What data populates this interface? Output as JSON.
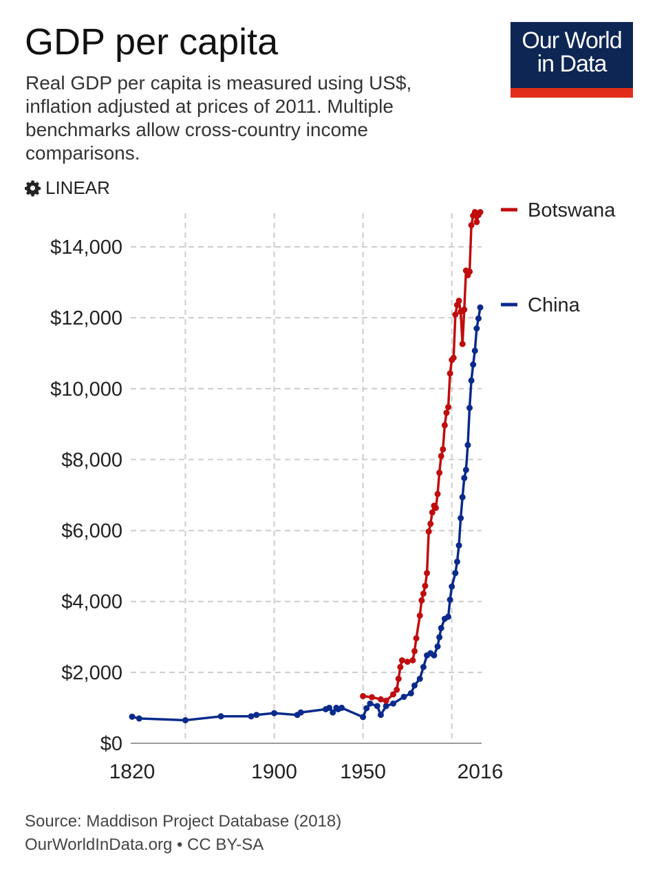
{
  "header": {
    "title": "GDP per capita",
    "subtitle": "Real GDP per capita is measured using US$, inflation adjusted at prices of 2011. Multiple benchmarks allow cross-country income comparisons.",
    "scale_toggle": "LINEAR",
    "scale_icon": "gear-icon"
  },
  "logo": {
    "line1": "Our World",
    "line2": "in Data",
    "bg": "#0d2654",
    "accent": "#e22d18"
  },
  "footer": {
    "source": "Source: Maddison Project Database (2018)",
    "license": "OurWorldInData.org • CC BY-SA"
  },
  "chart_data": {
    "type": "line",
    "title": "GDP per capita",
    "xlim": [
      1820,
      2016
    ],
    "ylim": [
      0,
      14000
    ],
    "grid": true,
    "legend": "right (line-end labels)",
    "x_ticks": [
      "1820",
      "1900",
      "1950",
      "2016"
    ],
    "x_grid": [
      1850,
      1900,
      1950,
      2000
    ],
    "y_ticks": [
      {
        "v": 0,
        "label": "$0"
      },
      {
        "v": 2000,
        "label": "$2,000"
      },
      {
        "v": 4000,
        "label": "$4,000"
      },
      {
        "v": 6000,
        "label": "$6,000"
      },
      {
        "v": 8000,
        "label": "$8,000"
      },
      {
        "v": 10000,
        "label": "$10,000"
      },
      {
        "v": 12000,
        "label": "$12,000"
      },
      {
        "v": 14000,
        "label": "$14,000"
      }
    ],
    "series": [
      {
        "name": "Botswana",
        "color": "#c00d0d",
        "x": [
          1950,
          1955,
          1960,
          1963,
          1967,
          1969,
          1970,
          1971,
          1972,
          1975,
          1978,
          1979,
          1980,
          1982,
          1983,
          1984,
          1985,
          1986,
          1987,
          1988,
          1989,
          1990,
          1991,
          1992,
          1993,
          1994,
          1995,
          1996,
          1997,
          1998,
          1999,
          2000,
          2001,
          2002,
          2003,
          2004,
          2005,
          2006,
          2007,
          2008,
          2009,
          2010,
          2011,
          2012,
          2013,
          2014,
          2015,
          2016
        ],
        "y": [
          1330,
          1300,
          1240,
          1200,
          1380,
          1510,
          1820,
          2150,
          2340,
          2300,
          2340,
          2600,
          2960,
          3600,
          4030,
          4220,
          4440,
          4800,
          5970,
          6190,
          6510,
          6700,
          6640,
          7030,
          7630,
          8100,
          8290,
          8970,
          9320,
          9480,
          10430,
          10810,
          10870,
          12090,
          12360,
          12480,
          12170,
          11260,
          12230,
          13330,
          13200,
          13300,
          14610,
          14880,
          14980,
          14700,
          14900,
          14980
        ]
      },
      {
        "name": "China",
        "color": "#0a2a8c",
        "x": [
          1820,
          1824,
          1850,
          1870,
          1887,
          1890,
          1900,
          1913,
          1915,
          1929,
          1931,
          1933,
          1935,
          1936,
          1938,
          1950,
          1952,
          1954,
          1958,
          1960,
          1963,
          1967,
          1973,
          1977,
          1979,
          1982,
          1984,
          1986,
          1988,
          1990,
          1992,
          1993,
          1994,
          1996,
          1998,
          1999,
          2000,
          2002,
          2003,
          2004,
          2005,
          2006,
          2007,
          2008,
          2009,
          2010,
          2011,
          2012,
          2013,
          2014,
          2015,
          2016
        ],
        "y": [
          750,
          700,
          650,
          760,
          760,
          800,
          850,
          800,
          870,
          960,
          1000,
          870,
          1000,
          960,
          1000,
          740,
          990,
          1120,
          1050,
          800,
          1050,
          1120,
          1310,
          1410,
          1630,
          1820,
          2150,
          2480,
          2540,
          2480,
          2730,
          2990,
          3250,
          3510,
          3570,
          4050,
          4420,
          4800,
          5120,
          5580,
          6350,
          6940,
          7480,
          7710,
          8410,
          9460,
          10230,
          10680,
          11070,
          11700,
          11980,
          12290
        ]
      }
    ]
  }
}
